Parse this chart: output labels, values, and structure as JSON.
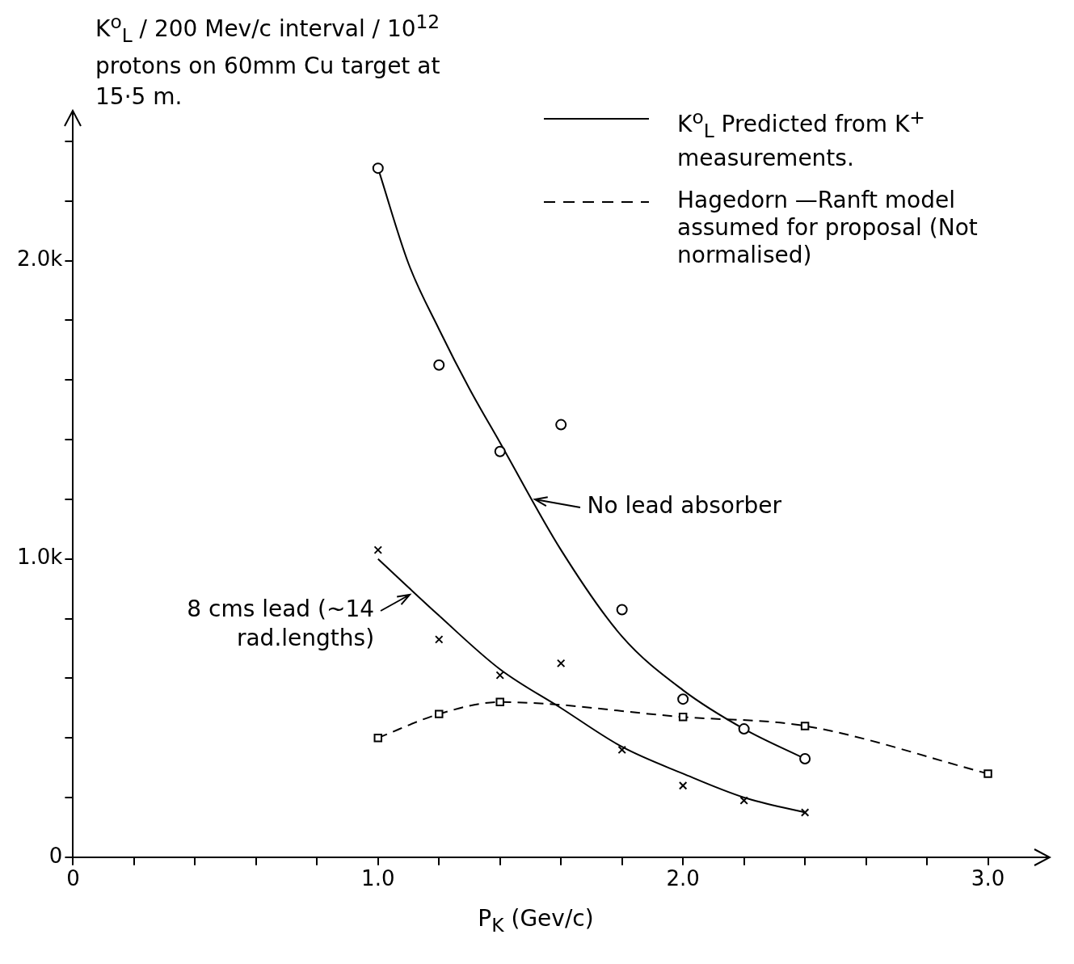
{
  "chart_data": {
    "type": "line",
    "ylabel": "K$^{o}$$_{L}$ / 200 Mev/c interval / 10$^{12}$ protons on 60mm Cu target at 15·5 m.",
    "xlabel": "P$_{K}$  (Gev/c)",
    "xlim": [
      0,
      3.2
    ],
    "xticks": [
      0,
      {
        "value": 0.2,
        "label": null
      },
      {
        "value": 0.4,
        "label": null
      },
      {
        "value": 0.6,
        "label": null
      },
      {
        "value": 0.8,
        "label": null
      },
      {
        "value": 1.0,
        "label": "1.0"
      },
      {
        "value": 1.2,
        "label": null
      },
      {
        "value": 1.4,
        "label": null
      },
      {
        "value": 1.6,
        "label": null
      },
      {
        "value": 1.8,
        "label": null
      },
      {
        "value": 2.0,
        "label": "2.0"
      },
      {
        "value": 2.2,
        "label": null
      },
      {
        "value": 2.4,
        "label": null
      },
      {
        "value": 2.6,
        "label": null
      },
      {
        "value": 2.8,
        "label": null
      },
      {
        "value": 3.0,
        "label": "3.0"
      }
    ],
    "ylim": [
      0,
      2500
    ],
    "yticks": [
      0,
      {
        "value": 200,
        "label": null
      },
      {
        "value": 400,
        "label": null
      },
      {
        "value": 600,
        "label": null
      },
      {
        "value": 800,
        "label": null
      },
      {
        "value": 1000,
        "label": "1.0k"
      },
      {
        "value": 1200,
        "label": null
      },
      {
        "value": 1400,
        "label": null
      },
      {
        "value": 1600,
        "label": null
      },
      {
        "value": 1800,
        "label": null
      },
      {
        "value": 2000,
        "label": "2.0k"
      },
      {
        "value": 2200,
        "label": null
      },
      {
        "value": 2400,
        "label": null
      }
    ],
    "grid": false,
    "legend": "top right",
    "series": [
      {
        "type": "scatter",
        "marker": "circle",
        "color": "#000000",
        "x": [
          1.0,
          1.2,
          1.4,
          1.6,
          1.8,
          2.0,
          2.2,
          2.4
        ],
        "values": [
          2310,
          1650,
          1360,
          1450,
          830,
          530,
          430,
          330
        ]
      },
      {
        "marker": "none",
        "name": "K$^{o}$$_{L}$ Predicted from K$^{+}$ measurements.",
        "color": "#000000",
        "x": [
          1.0,
          1.1,
          1.2,
          1.3,
          1.4,
          1.6,
          1.8,
          2.0,
          2.2,
          2.4
        ],
        "values": [
          2310,
          1990,
          1770,
          1570,
          1390,
          1030,
          740,
          560,
          430,
          330
        ]
      },
      {
        "type": "scatter",
        "marker": "cross",
        "color": "#000000",
        "x": [
          1.0,
          1.2,
          1.4,
          1.6,
          1.8,
          2.0,
          2.2,
          2.4
        ],
        "values": [
          1030,
          730,
          610,
          650,
          360,
          240,
          190,
          150
        ]
      },
      {
        "marker": "none",
        "color": "#000000",
        "x": [
          1.0,
          1.2,
          1.4,
          1.6,
          1.8,
          2.0,
          2.2,
          2.4
        ],
        "values": [
          1000,
          810,
          630,
          500,
          370,
          280,
          200,
          150
        ]
      },
      {
        "marker": "square",
        "line_style": "dashed",
        "name": "Hagedorn —Ranft model assumed for proposal (Not normalised)",
        "color": "#000000",
        "x": [
          1.0,
          1.2,
          1.4,
          2.0,
          2.4,
          3.0
        ],
        "values": [
          400,
          480,
          520,
          470,
          440,
          280
        ]
      }
    ],
    "annotations": [
      {
        "text": "No lead absorber",
        "x": 1.5,
        "y": 1200
      },
      {
        "text": "8 cms lead (~14 rad.lengths)",
        "x": 1.12,
        "y": 880
      }
    ]
  }
}
